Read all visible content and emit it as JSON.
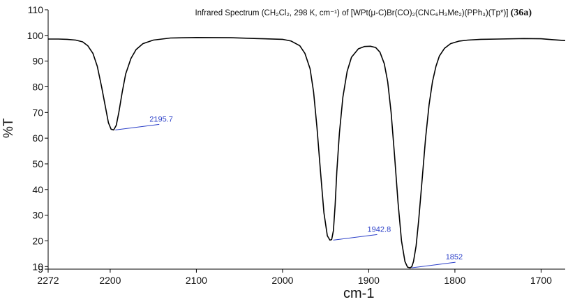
{
  "chart_data": {
    "type": "line",
    "title": "Infrared Spectrum (CH₂Cl₂, 298 K, cm⁻¹) of [WPt(μ-C)Br(CO)₂(CNC₆H₃Me₂)(PPh₃)(Tp*)]",
    "compound_label": "(36a)",
    "xlabel": "cm-1",
    "ylabel": "%T",
    "xlim": [
      2272,
      1672
    ],
    "x_reversed": true,
    "ylim": [
      9,
      110
    ],
    "x_ticks": [
      "2272",
      "2200",
      "2100",
      "2000",
      "1900",
      "1800",
      "1700"
    ],
    "y_ticks": [
      "9",
      "10",
      "20",
      "30",
      "40",
      "50",
      "60",
      "70",
      "80",
      "90",
      "100",
      "110"
    ],
    "grid": false,
    "series": [
      {
        "color": "#000000",
        "x": [
          2272,
          2260,
          2250,
          2240,
          2232,
          2226,
          2220,
          2215,
          2210,
          2206,
          2202,
          2199,
          2196,
          2193,
          2190,
          2186,
          2182,
          2176,
          2170,
          2162,
          2150,
          2130,
          2100,
          2060,
          2030,
          2000,
          1990,
          1980,
          1974,
          1968,
          1964,
          1960,
          1956,
          1952,
          1948,
          1945,
          1943,
          1941,
          1939,
          1937,
          1934,
          1930,
          1925,
          1920,
          1912,
          1905,
          1898,
          1892,
          1887,
          1882,
          1878,
          1874,
          1870,
          1866,
          1862,
          1858,
          1855,
          1852,
          1850,
          1848,
          1845,
          1842,
          1838,
          1834,
          1830,
          1826,
          1822,
          1818,
          1812,
          1805,
          1795,
          1785,
          1770,
          1750,
          1720,
          1700,
          1685,
          1672
        ],
        "values": [
          98.6,
          98.6,
          98.5,
          98.2,
          97.5,
          96.0,
          93.0,
          88.0,
          80.0,
          73.0,
          66.0,
          63.5,
          63.2,
          65.0,
          70.0,
          78.0,
          85.0,
          91.0,
          94.5,
          96.8,
          98.2,
          99.0,
          99.2,
          99.1,
          98.8,
          98.5,
          97.8,
          96.0,
          93.0,
          87.0,
          78.0,
          64.0,
          47.0,
          31.0,
          22.0,
          20.3,
          20.5,
          24.0,
          34.0,
          47.0,
          62.0,
          76.0,
          86.0,
          91.5,
          94.8,
          95.7,
          95.8,
          95.3,
          93.5,
          89.0,
          82.0,
          70.0,
          53.0,
          35.0,
          20.0,
          12.0,
          9.8,
          9.5,
          10.0,
          12.0,
          18.0,
          28.0,
          44.0,
          60.0,
          73.0,
          82.0,
          88.0,
          92.0,
          95.0,
          96.8,
          97.8,
          98.2,
          98.5,
          98.6,
          98.8,
          98.7,
          98.3,
          98.0
        ]
      }
    ],
    "annotations": [
      {
        "label": "2195.7",
        "x": 2195.7,
        "y": 63.2
      },
      {
        "label": "1942.8",
        "x": 1942.8,
        "y": 20.3
      },
      {
        "label": "1852",
        "x": 1852,
        "y": 9.5
      }
    ],
    "colors": {
      "trace": "#000000",
      "annotation": "#2b3fc8",
      "axis": "#000000"
    }
  }
}
